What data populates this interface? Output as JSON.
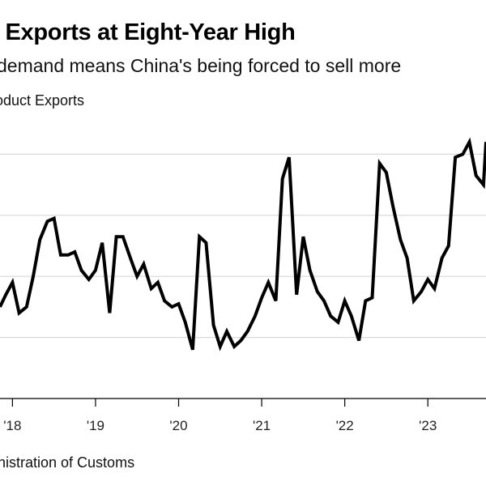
{
  "title": "l Exports at Eight-Year High",
  "subtitle": "demand means China's being forced to sell more",
  "unit_label": "oduct Exports",
  "source": "nistration of Customs",
  "colors": {
    "line": "#000000",
    "grid": "#d9d9d9",
    "axis": "#000000"
  },
  "chart_data": {
    "type": "line",
    "title": "l Exports at Eight-Year High",
    "subtitle": "demand means China's being forced to sell more",
    "ylabel": "oduct Exports",
    "x_tick_labels": [
      "'18",
      "'19",
      "'20",
      "'21",
      "'22",
      "'23"
    ],
    "x_tick_positions": [
      2018.0,
      2019.0,
      2020.0,
      2021.0,
      2022.0,
      2023.0
    ],
    "xlim": [
      2017.85,
      2023.7
    ],
    "ylim": [
      0,
      5
    ],
    "y_tick_labels": [],
    "grid": true,
    "gridlines_y": [
      1,
      2,
      3,
      4
    ],
    "series": [
      {
        "x": [
          2017.85,
          2017.92,
          2018.0,
          2018.08,
          2018.17,
          2018.25,
          2018.33,
          2018.42,
          2018.5,
          2018.58,
          2018.67,
          2018.75,
          2018.83,
          2018.92,
          2019.0,
          2019.08,
          2019.17,
          2019.25,
          2019.33,
          2019.42,
          2019.5,
          2019.58,
          2019.67,
          2019.75,
          2019.83,
          2019.92,
          2020.0,
          2020.08,
          2020.17,
          2020.25,
          2020.33,
          2020.42,
          2020.5,
          2020.58,
          2020.67,
          2020.75,
          2020.83,
          2020.92,
          2021.0,
          2021.08,
          2021.17,
          2021.25,
          2021.33,
          2021.42,
          2021.5,
          2021.58,
          2021.67,
          2021.75,
          2021.83,
          2021.92,
          2022.0,
          2022.08,
          2022.17,
          2022.25,
          2022.33,
          2022.42,
          2022.5,
          2022.58,
          2022.67,
          2022.75,
          2022.83,
          2022.92,
          2023.0,
          2023.08,
          2023.17,
          2023.25,
          2023.33,
          2023.42,
          2023.5,
          2023.58,
          2023.67,
          2023.7
        ],
        "y": [
          1.5,
          1.7,
          1.9,
          1.4,
          1.5,
          2.0,
          2.6,
          2.9,
          2.95,
          2.35,
          2.35,
          2.4,
          2.1,
          1.95,
          2.1,
          2.55,
          1.4,
          2.65,
          2.65,
          2.3,
          2.0,
          2.2,
          1.8,
          1.9,
          1.6,
          1.5,
          1.55,
          1.25,
          0.8,
          2.65,
          2.55,
          1.2,
          0.85,
          1.1,
          0.85,
          0.95,
          1.1,
          1.35,
          1.65,
          1.9,
          1.6,
          3.6,
          3.95,
          1.7,
          2.65,
          2.1,
          1.75,
          1.6,
          1.35,
          1.25,
          1.6,
          1.35,
          0.95,
          1.6,
          1.65,
          3.85,
          3.7,
          3.15,
          2.6,
          2.3,
          1.6,
          1.75,
          1.95,
          1.8,
          2.3,
          2.5,
          3.95,
          4.0,
          4.2,
          3.65,
          3.5,
          4.2
        ]
      }
    ]
  }
}
